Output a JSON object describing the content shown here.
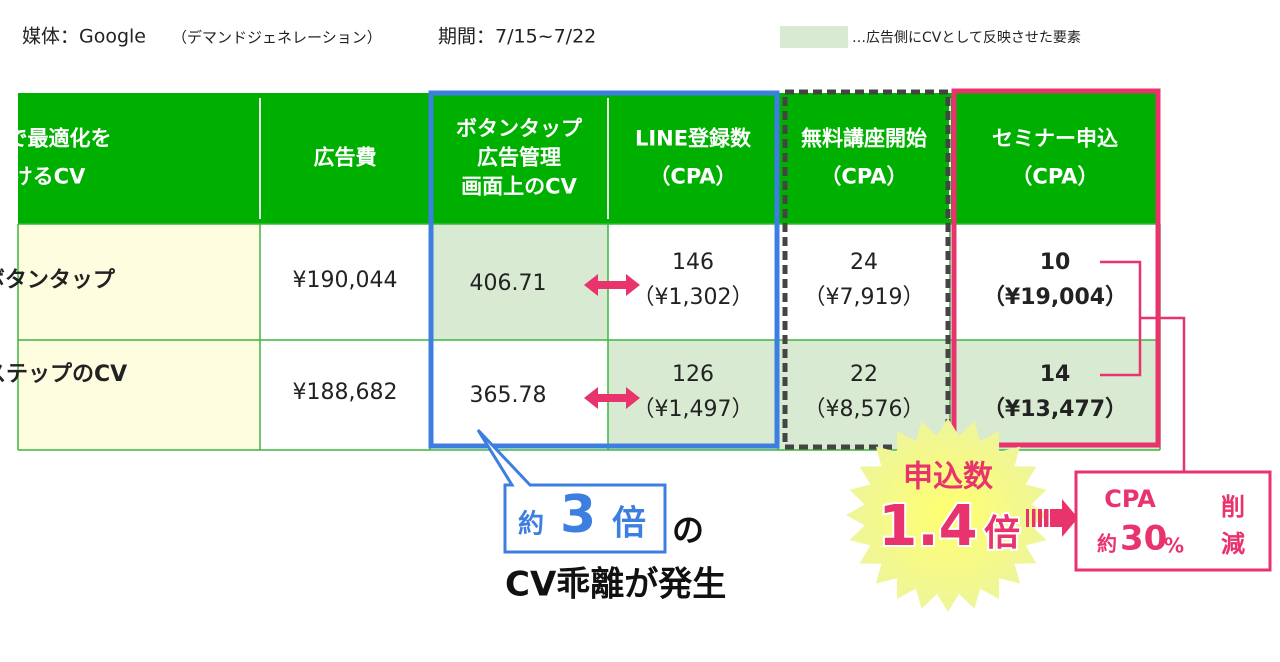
{
  "header": {
    "media": "媒体：Google",
    "media_note": "（デマンドジェネレーション）",
    "period": "期間：7/15~7/22",
    "legend": "…広告側にCVとして反映させた要素"
  },
  "table": {
    "columns": [
      [
        "広告で最適化を",
        "かけるCV"
      ],
      [
        "広告費"
      ],
      [
        "ボタンタップ",
        "広告管理",
        "画面上のCV"
      ],
      [
        "LINE登録数",
        "（CPA）"
      ],
      [
        "無料講座開始",
        "（CPA）"
      ],
      [
        "セミナー申込",
        "（CPA）"
      ]
    ],
    "rows": [
      {
        "label": "A.ボタンタップ",
        "cost": "¥190,044",
        "button_cv": "406.71",
        "line": [
          "146",
          "（¥1,302）"
        ],
        "course": [
          "24",
          "（¥7,919）"
        ],
        "seminar": [
          "10",
          "（¥19,004）"
        ]
      },
      {
        "label": "B.LステップのCV",
        "cost": "¥188,682",
        "button_cv": "365.78",
        "line": [
          "126",
          "（¥1,497）"
        ],
        "course": [
          "22",
          "（¥8,576）"
        ],
        "seminar": [
          "14",
          "（¥13,477）"
        ]
      }
    ]
  },
  "callout": {
    "prefix": "約",
    "number": "3",
    "suffix": "倍",
    "particle": "の",
    "text": "CV乖離が発生"
  },
  "badge": {
    "label": "申込数",
    "number": "1.4",
    "suffix": "倍"
  },
  "result": {
    "title": "CPA",
    "prefix": "約",
    "number": "30",
    "unit": "%",
    "verb1": "削",
    "verb2": "減"
  }
}
